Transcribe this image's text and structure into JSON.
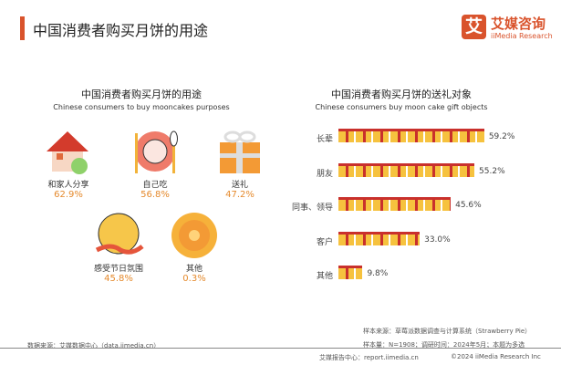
{
  "header": {
    "title": "中国消费者购买月饼的用途",
    "logo_mark": "艾",
    "logo_cn": "艾媒咨询",
    "logo_en": "iiMedia Research"
  },
  "chart_data": [
    {
      "type": "pictogram",
      "title": "中国消费者购买月饼的用途",
      "subtitle": "Chinese consumers to buy mooncakes purposes",
      "categories": [
        "和家人分享",
        "自己吃",
        "送礼",
        "感受节日氛围",
        "其他"
      ],
      "values": [
        62.9,
        56.8,
        47.2,
        45.8,
        0.3
      ],
      "labels": [
        "62.9%",
        "56.8%",
        "47.2%",
        "45.8%",
        "0.3%"
      ],
      "icons": [
        "house-icon",
        "plate-icon",
        "gift-box-icon",
        "moon-icon",
        "mooncake-icon"
      ]
    },
    {
      "type": "bar",
      "orientation": "horizontal",
      "title": "中国消费者购买月饼的送礼对象",
      "subtitle": "Chinese consumers buy moon cake gift objects",
      "categories": [
        "长辈",
        "朋友",
        "同事、领导",
        "客户",
        "其他"
      ],
      "values": [
        59.2,
        55.2,
        45.6,
        33.0,
        9.8
      ],
      "labels": [
        "59.2%",
        "55.2%",
        "45.6%",
        "33.0%",
        "9.8%"
      ],
      "colors": {
        "gift": "#f6c23e",
        "ribbon": "#c9302c"
      }
    }
  ],
  "footer": {
    "source": "数据来源：艾媒数据中心（data.iimedia.cn）",
    "sample_source": "样本来源：草莓派数据调查与计算系统（Strawberry Pie）",
    "sample_info": "样本量：N=1908；调研时间：2024年5月；本题为多选",
    "report": "艾媒报告中心：report.iimedia.cn",
    "copyright": "©2024  iiMedia Research Inc"
  },
  "colors": {
    "accent": "#d9532c",
    "percent": "#e58a2d"
  }
}
